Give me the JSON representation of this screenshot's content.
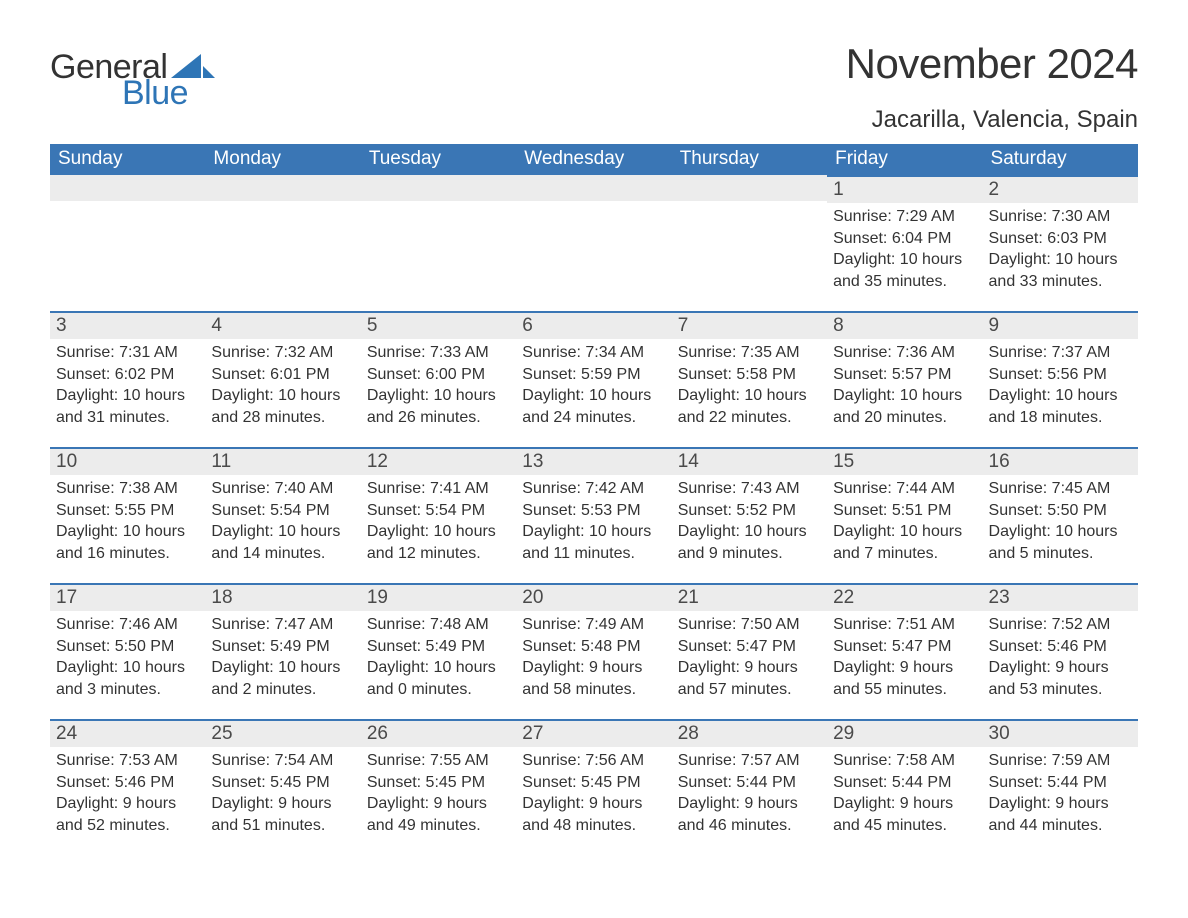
{
  "logo": {
    "word1": "General",
    "word2": "Blue",
    "sail_color": "#2e75b6"
  },
  "title": "November 2024",
  "location": "Jacarilla, Valencia, Spain",
  "colors": {
    "header_bg": "#3a76b5",
    "header_text": "#ffffff",
    "daynum_bg": "#ececec",
    "daynum_border": "#3a76b5",
    "body_text": "#333333",
    "page_bg": "#ffffff"
  },
  "fonts": {
    "title_pt": 42,
    "location_pt": 24,
    "header_pt": 19,
    "body_pt": 16
  },
  "day_headers": [
    "Sunday",
    "Monday",
    "Tuesday",
    "Wednesday",
    "Thursday",
    "Friday",
    "Saturday"
  ],
  "weeks": [
    [
      null,
      null,
      null,
      null,
      null,
      {
        "n": "1",
        "sunrise": "Sunrise: 7:29 AM",
        "sunset": "Sunset: 6:04 PM",
        "daylight": "Daylight: 10 hours and 35 minutes."
      },
      {
        "n": "2",
        "sunrise": "Sunrise: 7:30 AM",
        "sunset": "Sunset: 6:03 PM",
        "daylight": "Daylight: 10 hours and 33 minutes."
      }
    ],
    [
      {
        "n": "3",
        "sunrise": "Sunrise: 7:31 AM",
        "sunset": "Sunset: 6:02 PM",
        "daylight": "Daylight: 10 hours and 31 minutes."
      },
      {
        "n": "4",
        "sunrise": "Sunrise: 7:32 AM",
        "sunset": "Sunset: 6:01 PM",
        "daylight": "Daylight: 10 hours and 28 minutes."
      },
      {
        "n": "5",
        "sunrise": "Sunrise: 7:33 AM",
        "sunset": "Sunset: 6:00 PM",
        "daylight": "Daylight: 10 hours and 26 minutes."
      },
      {
        "n": "6",
        "sunrise": "Sunrise: 7:34 AM",
        "sunset": "Sunset: 5:59 PM",
        "daylight": "Daylight: 10 hours and 24 minutes."
      },
      {
        "n": "7",
        "sunrise": "Sunrise: 7:35 AM",
        "sunset": "Sunset: 5:58 PM",
        "daylight": "Daylight: 10 hours and 22 minutes."
      },
      {
        "n": "8",
        "sunrise": "Sunrise: 7:36 AM",
        "sunset": "Sunset: 5:57 PM",
        "daylight": "Daylight: 10 hours and 20 minutes."
      },
      {
        "n": "9",
        "sunrise": "Sunrise: 7:37 AM",
        "sunset": "Sunset: 5:56 PM",
        "daylight": "Daylight: 10 hours and 18 minutes."
      }
    ],
    [
      {
        "n": "10",
        "sunrise": "Sunrise: 7:38 AM",
        "sunset": "Sunset: 5:55 PM",
        "daylight": "Daylight: 10 hours and 16 minutes."
      },
      {
        "n": "11",
        "sunrise": "Sunrise: 7:40 AM",
        "sunset": "Sunset: 5:54 PM",
        "daylight": "Daylight: 10 hours and 14 minutes."
      },
      {
        "n": "12",
        "sunrise": "Sunrise: 7:41 AM",
        "sunset": "Sunset: 5:54 PM",
        "daylight": "Daylight: 10 hours and 12 minutes."
      },
      {
        "n": "13",
        "sunrise": "Sunrise: 7:42 AM",
        "sunset": "Sunset: 5:53 PM",
        "daylight": "Daylight: 10 hours and 11 minutes."
      },
      {
        "n": "14",
        "sunrise": "Sunrise: 7:43 AM",
        "sunset": "Sunset: 5:52 PM",
        "daylight": "Daylight: 10 hours and 9 minutes."
      },
      {
        "n": "15",
        "sunrise": "Sunrise: 7:44 AM",
        "sunset": "Sunset: 5:51 PM",
        "daylight": "Daylight: 10 hours and 7 minutes."
      },
      {
        "n": "16",
        "sunrise": "Sunrise: 7:45 AM",
        "sunset": "Sunset: 5:50 PM",
        "daylight": "Daylight: 10 hours and 5 minutes."
      }
    ],
    [
      {
        "n": "17",
        "sunrise": "Sunrise: 7:46 AM",
        "sunset": "Sunset: 5:50 PM",
        "daylight": "Daylight: 10 hours and 3 minutes."
      },
      {
        "n": "18",
        "sunrise": "Sunrise: 7:47 AM",
        "sunset": "Sunset: 5:49 PM",
        "daylight": "Daylight: 10 hours and 2 minutes."
      },
      {
        "n": "19",
        "sunrise": "Sunrise: 7:48 AM",
        "sunset": "Sunset: 5:49 PM",
        "daylight": "Daylight: 10 hours and 0 minutes."
      },
      {
        "n": "20",
        "sunrise": "Sunrise: 7:49 AM",
        "sunset": "Sunset: 5:48 PM",
        "daylight": "Daylight: 9 hours and 58 minutes."
      },
      {
        "n": "21",
        "sunrise": "Sunrise: 7:50 AM",
        "sunset": "Sunset: 5:47 PM",
        "daylight": "Daylight: 9 hours and 57 minutes."
      },
      {
        "n": "22",
        "sunrise": "Sunrise: 7:51 AM",
        "sunset": "Sunset: 5:47 PM",
        "daylight": "Daylight: 9 hours and 55 minutes."
      },
      {
        "n": "23",
        "sunrise": "Sunrise: 7:52 AM",
        "sunset": "Sunset: 5:46 PM",
        "daylight": "Daylight: 9 hours and 53 minutes."
      }
    ],
    [
      {
        "n": "24",
        "sunrise": "Sunrise: 7:53 AM",
        "sunset": "Sunset: 5:46 PM",
        "daylight": "Daylight: 9 hours and 52 minutes."
      },
      {
        "n": "25",
        "sunrise": "Sunrise: 7:54 AM",
        "sunset": "Sunset: 5:45 PM",
        "daylight": "Daylight: 9 hours and 51 minutes."
      },
      {
        "n": "26",
        "sunrise": "Sunrise: 7:55 AM",
        "sunset": "Sunset: 5:45 PM",
        "daylight": "Daylight: 9 hours and 49 minutes."
      },
      {
        "n": "27",
        "sunrise": "Sunrise: 7:56 AM",
        "sunset": "Sunset: 5:45 PM",
        "daylight": "Daylight: 9 hours and 48 minutes."
      },
      {
        "n": "28",
        "sunrise": "Sunrise: 7:57 AM",
        "sunset": "Sunset: 5:44 PM",
        "daylight": "Daylight: 9 hours and 46 minutes."
      },
      {
        "n": "29",
        "sunrise": "Sunrise: 7:58 AM",
        "sunset": "Sunset: 5:44 PM",
        "daylight": "Daylight: 9 hours and 45 minutes."
      },
      {
        "n": "30",
        "sunrise": "Sunrise: 7:59 AM",
        "sunset": "Sunset: 5:44 PM",
        "daylight": "Daylight: 9 hours and 44 minutes."
      }
    ]
  ]
}
